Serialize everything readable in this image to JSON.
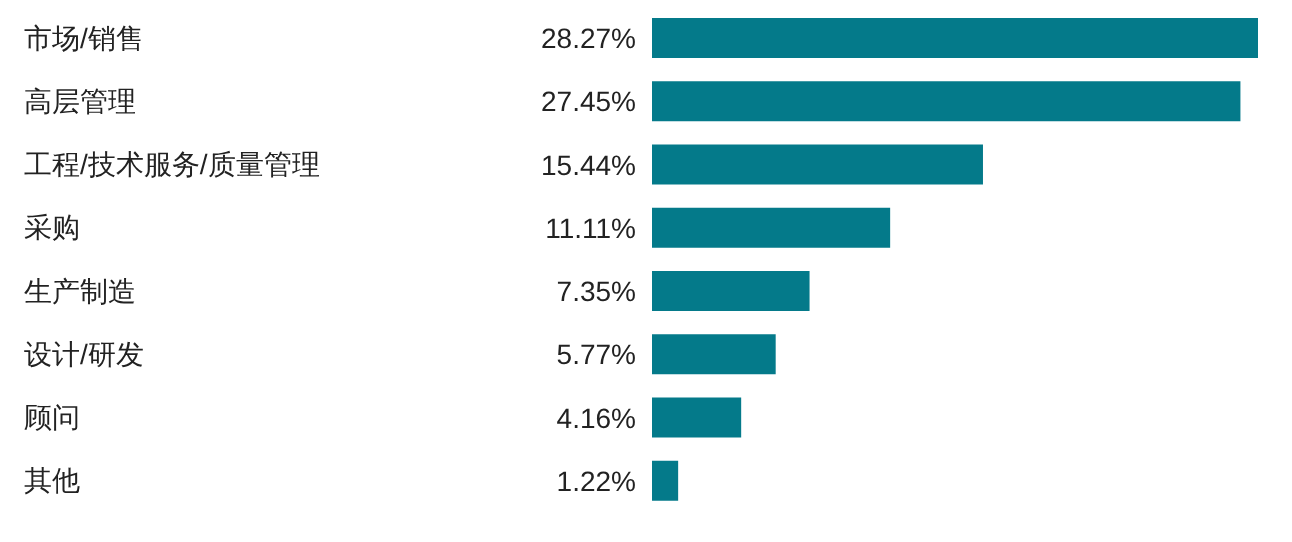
{
  "chart_data": {
    "type": "bar",
    "orientation": "horizontal",
    "categories": [
      "市场/销售",
      "高层管理",
      "工程/技术服务/质量管理",
      "采购",
      "生产制造",
      "设计/研发",
      "顾问",
      "其他"
    ],
    "values": [
      28.27,
      27.45,
      15.44,
      11.11,
      7.35,
      5.77,
      4.16,
      1.22
    ],
    "value_labels": [
      "28.27%",
      "27.45%",
      "15.44%",
      "11.11%",
      "7.35%",
      "5.77%",
      "4.16%",
      "1.22%"
    ],
    "color": "#047a8a",
    "grid": false,
    "legend": false
  }
}
